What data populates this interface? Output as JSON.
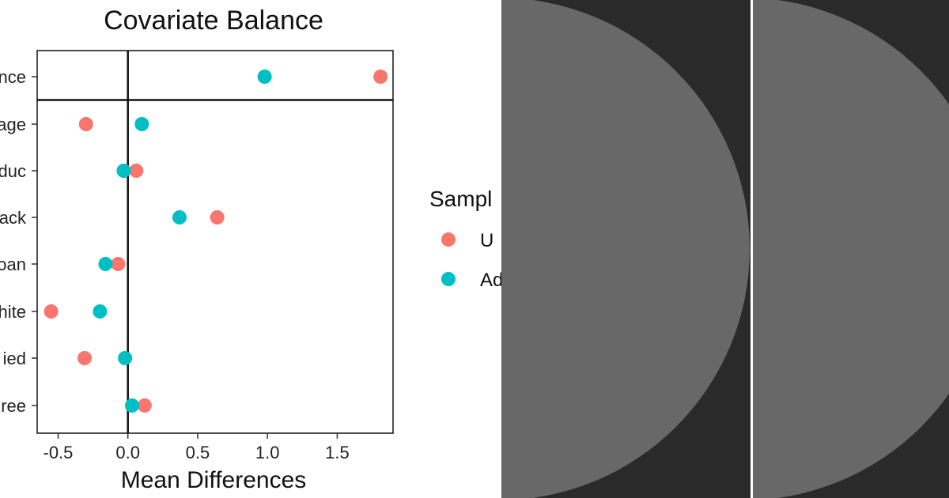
{
  "chart_data": {
    "type": "scatter",
    "title": "Covariate Balance",
    "xlabel": "Mean Differences",
    "ylabel": "",
    "xlim": [
      -0.65,
      1.9
    ],
    "x_ticks": [
      -0.5,
      0.0,
      0.5,
      1.0,
      1.5
    ],
    "x_tick_labels": [
      "-0.5",
      "0.0",
      "0.5",
      "1.0",
      "1.5"
    ],
    "categories_visible": [
      "nce",
      "age",
      "duc",
      "ack",
      "oan",
      "hite",
      "ied",
      "ree"
    ],
    "grid": false,
    "legend": {
      "title": "Sampl",
      "entries": [
        "U",
        "Ad"
      ],
      "placement": "right"
    },
    "series": [
      {
        "name": "U",
        "color": "#f8766d",
        "values": [
          1.81,
          -0.3,
          0.06,
          0.64,
          -0.07,
          -0.55,
          -0.31,
          0.12
        ]
      },
      {
        "name": "Ad",
        "color": "#00bfc4",
        "values": [
          0.98,
          0.1,
          -0.03,
          0.37,
          -0.16,
          -0.2,
          -0.02,
          0.03
        ]
      }
    ]
  },
  "overlay": {
    "panel_color": "#2a2a2a",
    "shape_color": "#686868",
    "divider_color": "#ffffff"
  }
}
